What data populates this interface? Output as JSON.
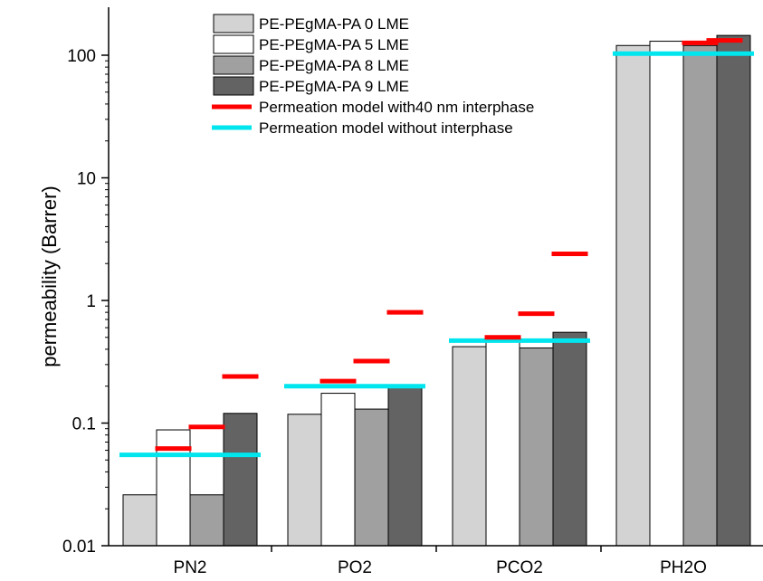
{
  "chart_data": {
    "type": "bar",
    "categories": [
      "PN2",
      "PO2",
      "PCO2",
      "PH2O"
    ],
    "ylabel": "permeability (Barrer)",
    "xlabel": "",
    "yscale": "log",
    "ylim": [
      0.01,
      150
    ],
    "yticks": [
      {
        "value": 0.01,
        "label": "0.01"
      },
      {
        "value": 0.1,
        "label": "0.1"
      },
      {
        "value": 1,
        "label": "1"
      },
      {
        "value": 10,
        "label": "10"
      },
      {
        "value": 100,
        "label": "100"
      }
    ],
    "series": [
      {
        "name": "PE-PEgMA-PA 0 LME",
        "color": "#d3d3d3",
        "values": [
          0.026,
          0.118,
          0.42,
          120
        ]
      },
      {
        "name": "PE-PEgMA-PA 5 LME",
        "color": "#ffffff",
        "values": [
          0.088,
          0.175,
          0.5,
          130
        ]
      },
      {
        "name": "PE-PEgMA-PA 8 LME",
        "color": "#a0a0a0",
        "values": [
          0.026,
          0.13,
          0.41,
          120
        ]
      },
      {
        "name": "PE-PEgMA-PA 9 LME",
        "color": "#636363",
        "values": [
          0.12,
          0.2,
          0.55,
          145
        ]
      }
    ],
    "model_lines": [
      {
        "name": "Permeation model with40 nm interphase",
        "color": "#ff0000",
        "values": [
          [
            0.062,
            0.093,
            0.24
          ],
          [
            0.22,
            0.32,
            0.8
          ],
          [
            0.5,
            0.78,
            2.4
          ],
          [
            126,
            132
          ]
        ]
      },
      {
        "name": "Permeation model without interphase",
        "color": "#00e5ee",
        "values": [
          0.055,
          0.2,
          0.47,
          103
        ]
      }
    ],
    "legend_position": "top"
  }
}
